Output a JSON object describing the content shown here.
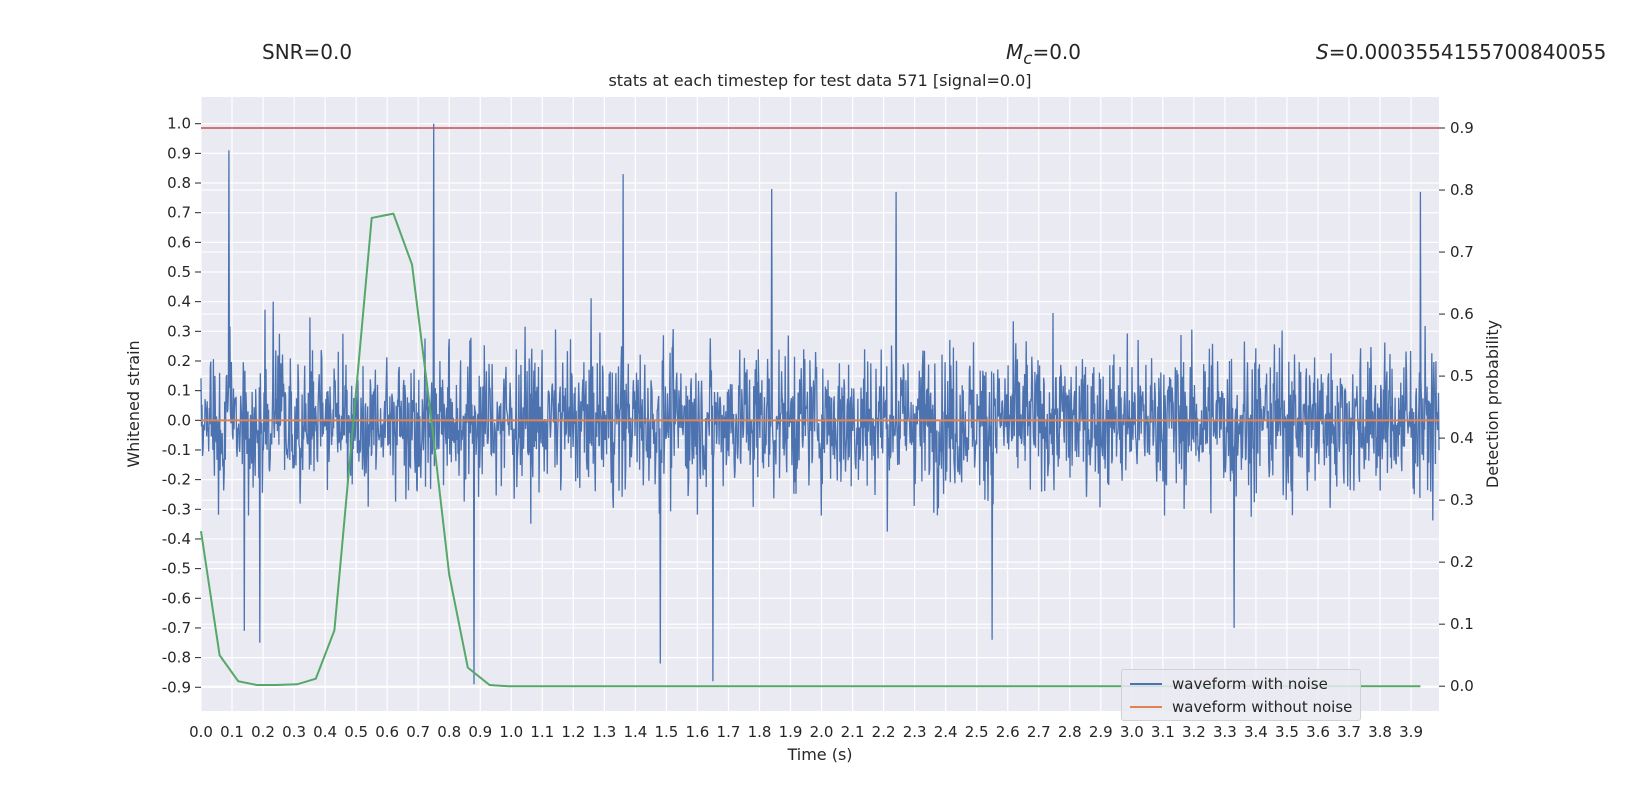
{
  "header": {
    "snr": "SNR=0.0",
    "mc_symbol": "M",
    "mc_sub": "c",
    "mc_value": "=0.0",
    "s_symbol": "S",
    "s_value": "=0.0003554155700840055"
  },
  "colors": {
    "background": "#eaeaf2",
    "grid": "#ffffff",
    "noise": "#4c72b0",
    "clean": "#dd8452",
    "prob": "#55a868",
    "threshold": "#c44e52"
  },
  "chart_data": {
    "type": "line",
    "title": "stats at each timestep for test data 571 [signal=0.0]",
    "xlabel": "Time (s)",
    "ylabel": "Whitened strain",
    "y2label": "Detection probability",
    "xlim": [
      0.0,
      3.99
    ],
    "ylim": [
      -0.98,
      1.09
    ],
    "y2lim": [
      -0.04,
      0.95
    ],
    "grid": true,
    "legend_placement": "lower-right",
    "x_ticks": [
      "0.0",
      "0.1",
      "0.2",
      "0.3",
      "0.4",
      "0.5",
      "0.6",
      "0.7",
      "0.8",
      "0.9",
      "1.0",
      "1.1",
      "1.2",
      "1.3",
      "1.4",
      "1.5",
      "1.6",
      "1.7",
      "1.8",
      "1.9",
      "2.0",
      "2.1",
      "2.2",
      "2.3",
      "2.4",
      "2.5",
      "2.6",
      "2.7",
      "2.8",
      "2.9",
      "3.0",
      "3.1",
      "3.2",
      "3.3",
      "3.4",
      "3.5",
      "3.6",
      "3.7",
      "3.8",
      "3.9"
    ],
    "y_ticks": [
      "1.0",
      "0.9",
      "0.8",
      "0.7",
      "0.6",
      "0.5",
      "0.4",
      "0.3",
      "0.2",
      "0.1",
      "0.0",
      "-0.1",
      "-0.2",
      "-0.3",
      "-0.4",
      "-0.5",
      "-0.6",
      "-0.7",
      "-0.8",
      "-0.9"
    ],
    "y2_ticks": [
      "0.9",
      "0.8",
      "0.7",
      "0.6",
      "0.5",
      "0.4",
      "0.3",
      "0.2",
      "0.1",
      "0.0"
    ],
    "threshold_line": {
      "axis": "right",
      "value": 0.9
    },
    "series": [
      {
        "name": "waveform with noise",
        "axis": "left",
        "style": "dense-noise",
        "range": [
          -0.89,
          1.0
        ],
        "notable_peaks": [
          {
            "x": 0.09,
            "y": 0.91
          },
          {
            "x": 0.75,
            "y": 1.0
          },
          {
            "x": 0.88,
            "y": -0.89
          },
          {
            "x": 1.36,
            "y": 0.83
          },
          {
            "x": 1.65,
            "y": -0.88
          },
          {
            "x": 1.84,
            "y": 0.78
          },
          {
            "x": 2.24,
            "y": 0.77
          },
          {
            "x": 3.93,
            "y": 0.77
          },
          {
            "x": 0.14,
            "y": -0.71
          },
          {
            "x": 0.19,
            "y": -0.75
          },
          {
            "x": 1.48,
            "y": -0.82
          },
          {
            "x": 2.55,
            "y": -0.74
          },
          {
            "x": 3.33,
            "y": -0.7
          }
        ]
      },
      {
        "name": "waveform without noise",
        "axis": "left",
        "x": [
          0.0,
          3.99
        ],
        "y": [
          0.0,
          0.0
        ]
      },
      {
        "axis": "right",
        "x": [
          0.0,
          0.06,
          0.12,
          0.18,
          0.24,
          0.31,
          0.37,
          0.43,
          0.49,
          0.55,
          0.62,
          0.68,
          0.74,
          0.8,
          0.86,
          0.93,
          0.99,
          3.93
        ],
        "y": [
          0.25,
          0.05,
          0.008,
          0.002,
          0.002,
          0.003,
          0.012,
          0.09,
          0.42,
          0.755,
          0.762,
          0.68,
          0.44,
          0.18,
          0.03,
          0.002,
          0.0,
          0.0
        ]
      }
    ]
  }
}
